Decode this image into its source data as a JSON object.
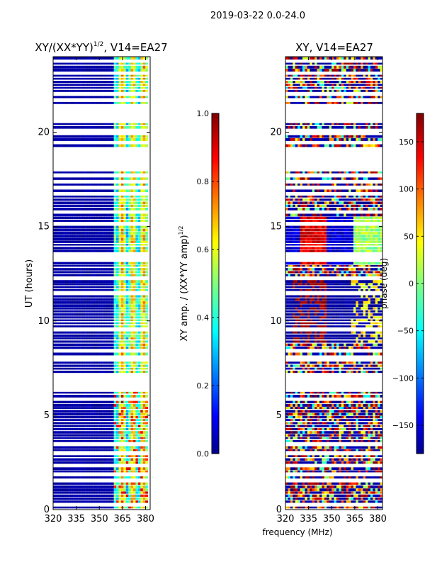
{
  "suptitle": "2019-03-22 0.0-24.0",
  "colors": {
    "background": "#ffffff",
    "axis": "#000000",
    "low": "#00008f",
    "high": "#800000"
  },
  "chart_data": [
    {
      "id": "amp",
      "type": "heatmap",
      "title_main": "XY/(XX*YY)",
      "title_sup": "1/2",
      "title_tail": ", V14=EA27",
      "xlabel": "",
      "ylabel": "UT (hours)",
      "xlim": [
        320,
        383
      ],
      "ylim": [
        0,
        24
      ],
      "xticks": [
        "320",
        "335",
        "350",
        "365",
        "380"
      ],
      "xtick_values": [
        320,
        335,
        350,
        365,
        380
      ],
      "yticks": [
        "0",
        "5",
        "10",
        "15",
        "20"
      ],
      "ytick_values": [
        0,
        5,
        10,
        15,
        20
      ],
      "colormap": "jet",
      "colorbar": {
        "label_main": "XY amp. / (XX*YY amp)",
        "label_sup": "1/2",
        "range": [
          0.0,
          1.0
        ],
        "ticks": [
          "0.0",
          "0.2",
          "0.4",
          "0.6",
          "0.8",
          "1.0"
        ],
        "tick_values": [
          0.0,
          0.2,
          0.4,
          0.6,
          0.8,
          1.0
        ]
      },
      "gaps_hours": [
        [
          17.9,
          19.2
        ],
        [
          20.5,
          21.4
        ],
        [
          6.3,
          7.2
        ],
        [
          7.9,
          8.1
        ]
      ],
      "features": "low amplitude (~0.05) across band; elevated 0.3-0.7 between 360-382 MHz"
    },
    {
      "id": "phase",
      "type": "heatmap",
      "title_main": "XY, V14=EA27",
      "title_sup": "",
      "title_tail": "",
      "xlabel": "frequency (MHz)",
      "ylabel": "",
      "xlim": [
        320,
        383
      ],
      "ylim": [
        0,
        24
      ],
      "xticks": [
        "320",
        "335",
        "350",
        "365",
        "380"
      ],
      "xtick_values": [
        320,
        335,
        350,
        365,
        380
      ],
      "yticks": [
        "0",
        "5",
        "10",
        "15",
        "20"
      ],
      "ytick_values": [
        0,
        5,
        10,
        15,
        20
      ],
      "colormap": "jet",
      "colorbar": {
        "label_main": "phase (deg)",
        "label_sup": "",
        "range": [
          -180,
          180
        ],
        "ticks": [
          "−150",
          "−100",
          "−50",
          "0",
          "50",
          "100",
          "150"
        ],
        "tick_values": [
          -150,
          -100,
          -50,
          0,
          50,
          100,
          150
        ]
      },
      "gaps_hours": [
        [
          17.9,
          19.2
        ],
        [
          20.5,
          21.4
        ],
        [
          6.3,
          7.2
        ],
        [
          7.9,
          8.1
        ]
      ],
      "features": "phase near -170 deg in 9-12 h with +170 deg patches 325-345 MHz; mixed phases elsewhere"
    }
  ]
}
